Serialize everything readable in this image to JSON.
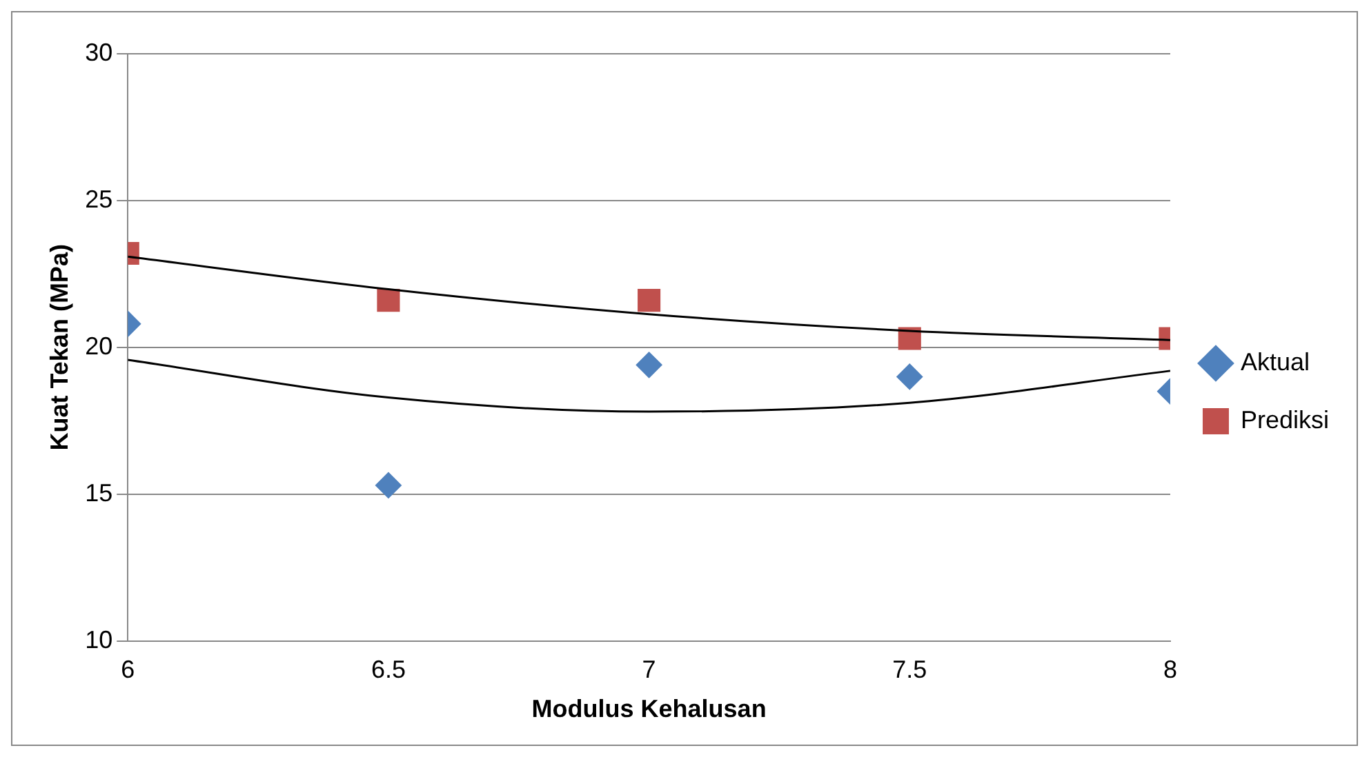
{
  "chart_data": {
    "type": "scatter",
    "xlabel": "Modulus Kehalusan",
    "ylabel": "Kuat Tekan (MPa)",
    "x": [
      6,
      6.5,
      7,
      7.5,
      8
    ],
    "series": [
      {
        "name": "Aktual",
        "color": "#4f81bd",
        "marker": "diamond",
        "values": [
          20.8,
          15.3,
          19.4,
          19.0,
          18.5
        ]
      },
      {
        "name": "Prediksi",
        "color": "#c0504d",
        "marker": "square",
        "values": [
          23.2,
          21.6,
          21.6,
          20.3,
          20.3
        ]
      },
      {
        "type": "line",
        "color": "#000000",
        "marker": "none",
        "values": [
          23.09,
          21.98,
          21.13,
          20.56,
          20.25
        ]
      },
      {
        "type": "line",
        "color": "#000000",
        "marker": "none",
        "values": [
          19.57,
          18.29,
          17.81,
          18.11,
          19.2
        ]
      }
    ],
    "xlim": [
      6,
      8
    ],
    "xticks": [
      6,
      6.5,
      7,
      7.5,
      8
    ],
    "ylim": [
      10,
      30
    ],
    "yticks": [
      10,
      15,
      20,
      25,
      30
    ],
    "grid": "y",
    "legend": "right"
  }
}
